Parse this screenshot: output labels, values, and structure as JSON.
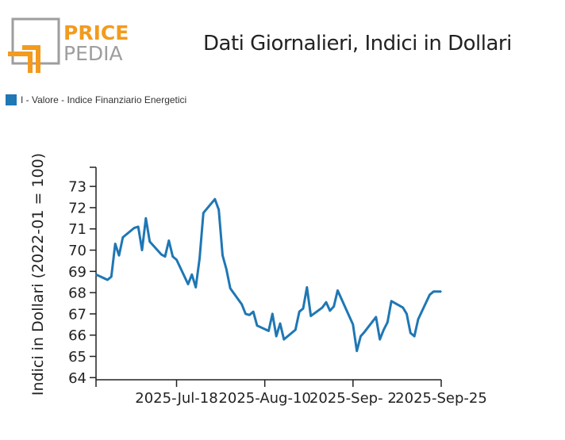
{
  "brand": {
    "top": "PRICE",
    "bottom": "PEDIA",
    "orange": "#F29B1E",
    "gray": "#9E9E9E"
  },
  "colors": {
    "series": "#1F77B4",
    "axis": "#222222"
  },
  "chart_data": {
    "type": "line",
    "title": "Dati Giornalieri, Indici in Dollari",
    "ylabel": "Indici in Dollari (2022-01 = 100)",
    "xlabel": "",
    "ylim": [
      63.9,
      73.9
    ],
    "yticks": [
      64,
      65,
      66,
      67,
      68,
      69,
      70,
      71,
      72,
      73
    ],
    "xticks": [
      "2025-Jul-18",
      "2025-Aug-10",
      "2025-Sep- 2",
      "2025-Sep-25"
    ],
    "legend_position": "top-left",
    "grid": false,
    "series": [
      {
        "name": "I - Valore - Indice Finanziario Energetici",
        "x": [
          "2025-Jun-27",
          "2025-Jun-30",
          "2025-Jul-1",
          "2025-Jul-2",
          "2025-Jul-3",
          "2025-Jul-4",
          "2025-Jul-7",
          "2025-Jul-8",
          "2025-Jul-9",
          "2025-Jul-10",
          "2025-Jul-11",
          "2025-Jul-14",
          "2025-Jul-15",
          "2025-Jul-16",
          "2025-Jul-17",
          "2025-Jul-18",
          "2025-Jul-21",
          "2025-Jul-22",
          "2025-Jul-23",
          "2025-Jul-24",
          "2025-Jul-25",
          "2025-Jul-28",
          "2025-Jul-29",
          "2025-Jul-30",
          "2025-Jul-31",
          "2025-Aug-1",
          "2025-Aug-4",
          "2025-Aug-5",
          "2025-Aug-6",
          "2025-Aug-7",
          "2025-Aug-8",
          "2025-Aug-11",
          "2025-Aug-12",
          "2025-Aug-13",
          "2025-Aug-14",
          "2025-Aug-15",
          "2025-Aug-18",
          "2025-Aug-19",
          "2025-Aug-20",
          "2025-Aug-21",
          "2025-Aug-22",
          "2025-Aug-25",
          "2025-Aug-26",
          "2025-Aug-27",
          "2025-Aug-28",
          "2025-Aug-29",
          "2025-Sep-1",
          "2025-Sep-2",
          "2025-Sep-3",
          "2025-Sep-4",
          "2025-Sep-5",
          "2025-Sep-8",
          "2025-Sep-9",
          "2025-Sep-10",
          "2025-Sep-11",
          "2025-Sep-12",
          "2025-Sep-15",
          "2025-Sep-16",
          "2025-Sep-17",
          "2025-Sep-18",
          "2025-Sep-19",
          "2025-Sep-22",
          "2025-Sep-23",
          "2025-Sep-24",
          "2025-Sep-25"
        ],
        "values": [
          68.85,
          68.6,
          68.75,
          70.3,
          69.75,
          70.6,
          71.05,
          71.1,
          70.0,
          71.5,
          70.4,
          69.8,
          69.7,
          70.45,
          69.7,
          69.55,
          68.4,
          68.85,
          68.25,
          69.6,
          71.75,
          72.4,
          71.9,
          69.75,
          69.1,
          68.2,
          67.45,
          67.0,
          66.95,
          67.1,
          66.45,
          66.2,
          67.0,
          65.95,
          66.55,
          65.8,
          66.25,
          67.1,
          67.25,
          68.25,
          66.9,
          67.3,
          67.55,
          67.15,
          67.35,
          68.1,
          66.9,
          66.5,
          65.25,
          65.95,
          66.15,
          66.85,
          65.8,
          66.25,
          66.6,
          67.6,
          67.3,
          67.0,
          66.1,
          65.95,
          66.75,
          67.9,
          68.05,
          68.05,
          68.05
        ],
        "xpos": [
          0,
          3,
          4,
          5,
          6,
          7,
          10,
          11,
          12,
          13,
          14,
          17,
          18,
          19,
          20,
          21,
          24,
          25,
          26,
          27,
          28,
          31,
          32,
          33,
          34,
          35,
          38,
          39,
          40,
          41,
          42,
          45,
          46,
          47,
          48,
          49,
          52,
          53,
          54,
          55,
          56,
          59,
          60,
          61,
          62,
          63,
          66,
          67,
          68,
          69,
          70,
          73,
          74,
          75,
          76,
          77,
          80,
          81,
          82,
          83,
          84,
          87,
          88,
          89,
          90
        ]
      }
    ]
  }
}
